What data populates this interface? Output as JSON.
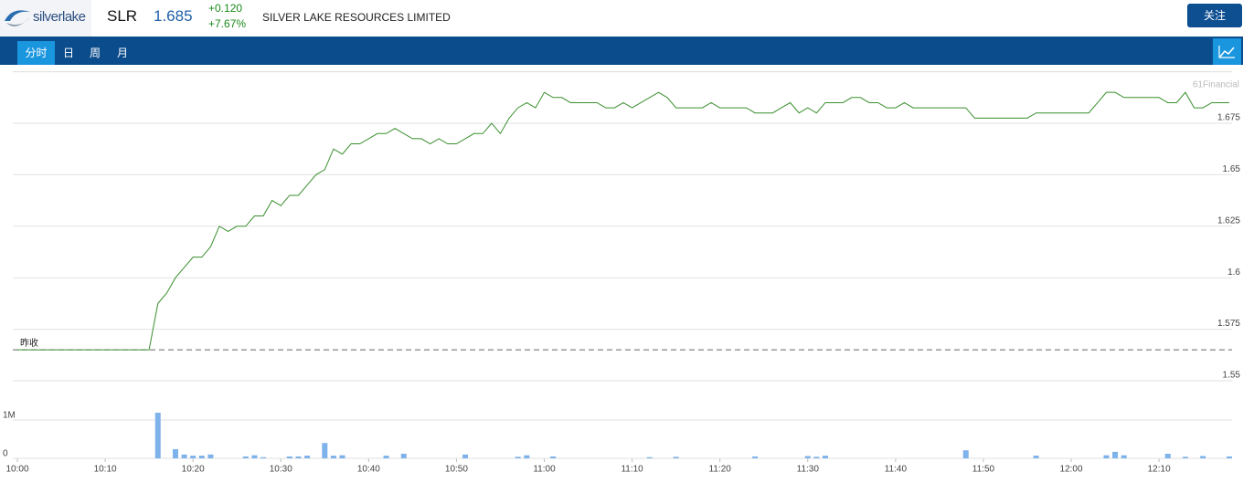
{
  "header": {
    "logo": "silverlake",
    "code": "SLR",
    "price": "1.685",
    "change": "+0.120",
    "change_pct": "+7.67%",
    "name": "SILVER LAKE RESOURCES LIMITED",
    "follow": "关注"
  },
  "tabs": [
    "分时",
    "日",
    "周",
    "月"
  ],
  "chart_data": {
    "type": "line",
    "watermark": "61Financial",
    "color": "#3a8f2e",
    "x": [
      0,
      1,
      2,
      3,
      4,
      5,
      6,
      7,
      8,
      9,
      10,
      11,
      12,
      13,
      14,
      15,
      16,
      17,
      18,
      19,
      20,
      21,
      22,
      23,
      24,
      25,
      26,
      27,
      28,
      29,
      30,
      31,
      32,
      33,
      34,
      35,
      36,
      37,
      38,
      39,
      40,
      41,
      42,
      43,
      44,
      45,
      46,
      47,
      48,
      49,
      50,
      51,
      52,
      53,
      54,
      55,
      56,
      57,
      58,
      59,
      60,
      61,
      62,
      63,
      64,
      65,
      66,
      67,
      68,
      69,
      70,
      71,
      72,
      73,
      74,
      75,
      76,
      77,
      78,
      79,
      80,
      81,
      82,
      83,
      84,
      85,
      86,
      87,
      88,
      89,
      90,
      91,
      92,
      93,
      94,
      95,
      96,
      97,
      98,
      99,
      100,
      101,
      102,
      103,
      104,
      105,
      106,
      107,
      108,
      109,
      110,
      111,
      112,
      113,
      114,
      115,
      116,
      117,
      118,
      119,
      120,
      121,
      122,
      123,
      124,
      125,
      126,
      127,
      128,
      129,
      130,
      131,
      132,
      133,
      134,
      135,
      136,
      137,
      138
    ],
    "values": [
      1.565,
      1.565,
      1.565,
      1.565,
      1.565,
      1.565,
      1.565,
      1.565,
      1.565,
      1.565,
      1.565,
      1.565,
      1.565,
      1.565,
      1.565,
      1.565,
      1.5875,
      1.5925,
      1.6,
      1.605,
      1.61,
      1.61,
      1.615,
      1.625,
      1.6225,
      1.625,
      1.625,
      1.63,
      1.63,
      1.6375,
      1.635,
      1.64,
      1.64,
      1.645,
      1.65,
      1.6525,
      1.6625,
      1.66,
      1.665,
      1.665,
      1.6675,
      1.67,
      1.67,
      1.6725,
      1.67,
      1.6675,
      1.6675,
      1.665,
      1.6675,
      1.665,
      1.665,
      1.6675,
      1.67,
      1.67,
      1.675,
      1.67,
      1.6775,
      1.6825,
      1.685,
      1.6825,
      1.69,
      1.6875,
      1.6875,
      1.685,
      1.685,
      1.685,
      1.685,
      1.6825,
      1.6825,
      1.685,
      1.6825,
      1.685,
      1.6875,
      1.69,
      1.6875,
      1.6825,
      1.6825,
      1.6825,
      1.6825,
      1.685,
      1.6825,
      1.6825,
      1.6825,
      1.6825,
      1.68,
      1.68,
      1.68,
      1.6825,
      1.685,
      1.68,
      1.6825,
      1.68,
      1.685,
      1.685,
      1.685,
      1.6875,
      1.6875,
      1.685,
      1.685,
      1.6825,
      1.6825,
      1.685,
      1.6825,
      1.6825,
      1.6825,
      1.6825,
      1.6825,
      1.6825,
      1.6825,
      1.6775,
      1.6775,
      1.6775,
      1.6775,
      1.6775,
      1.6775,
      1.6775,
      1.68,
      1.68,
      1.68,
      1.68,
      1.68,
      1.68,
      1.68,
      1.685,
      1.69,
      1.69,
      1.6875,
      1.6875,
      1.6875,
      1.6875,
      1.6875,
      1.685,
      1.685,
      1.69,
      1.6825,
      1.6825,
      1.685,
      1.685,
      1.685
    ],
    "xlim": [
      0,
      138
    ],
    "xticks": [
      {
        "value": 0,
        "label": "10:00"
      },
      {
        "value": 10,
        "label": "10:10"
      },
      {
        "value": 20,
        "label": "10:20"
      },
      {
        "value": 30,
        "label": "10:30"
      },
      {
        "value": 40,
        "label": "10:40"
      },
      {
        "value": 50,
        "label": "10:50"
      },
      {
        "value": 60,
        "label": "11:00"
      },
      {
        "value": 70,
        "label": "11:10"
      },
      {
        "value": 80,
        "label": "11:20"
      },
      {
        "value": 90,
        "label": "11:30"
      },
      {
        "value": 100,
        "label": "11:40"
      },
      {
        "value": 110,
        "label": "11:50"
      },
      {
        "value": 120,
        "label": "12:00"
      },
      {
        "value": 130,
        "label": "12:10"
      }
    ],
    "ylim": [
      1.55,
      1.7
    ],
    "yticks": [
      1.55,
      1.575,
      1.6,
      1.625,
      1.65,
      1.675
    ],
    "grid": true,
    "prev_close": {
      "label": "昨收",
      "value": 1.565
    },
    "volume": {
      "type": "bar",
      "color": "#7eb2ea",
      "values": [
        0,
        0,
        0,
        0,
        0,
        0,
        0,
        0,
        0,
        0,
        0,
        0,
        0,
        0,
        0,
        0,
        1190000,
        0,
        240000,
        100000,
        70000,
        70000,
        100000,
        0,
        0,
        0,
        50000,
        80000,
        30000,
        0,
        0,
        50000,
        50000,
        70000,
        0,
        400000,
        70000,
        80000,
        0,
        0,
        0,
        0,
        70000,
        0,
        120000,
        0,
        0,
        0,
        0,
        0,
        0,
        100000,
        0,
        0,
        0,
        0,
        0,
        40000,
        80000,
        0,
        0,
        50000,
        0,
        0,
        0,
        0,
        0,
        0,
        0,
        0,
        0,
        0,
        30000,
        0,
        0,
        40000,
        0,
        0,
        0,
        0,
        0,
        0,
        0,
        0,
        50000,
        0,
        0,
        0,
        0,
        0,
        60000,
        40000,
        70000,
        0,
        0,
        0,
        0,
        0,
        0,
        0,
        0,
        0,
        0,
        0,
        0,
        0,
        0,
        0,
        210000,
        0,
        0,
        0,
        0,
        0,
        0,
        0,
        70000,
        0,
        0,
        0,
        0,
        0,
        0,
        0,
        80000,
        170000,
        80000,
        0,
        0,
        0,
        0,
        120000,
        0,
        40000,
        0,
        60000,
        0,
        0,
        50000
      ],
      "ylim": [
        0,
        2000000
      ],
      "yticks": [
        0,
        {
          "value": 1000000,
          "label": "1M"
        }
      ]
    }
  }
}
